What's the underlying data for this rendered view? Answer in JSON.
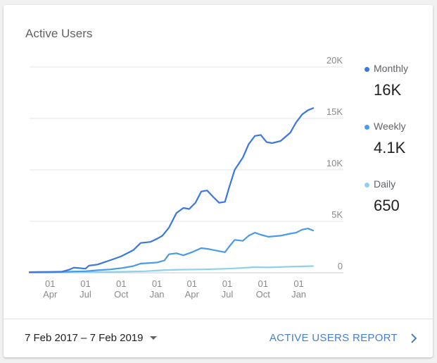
{
  "card": {
    "title": "Active Users"
  },
  "legend": [
    {
      "label": "Monthly",
      "value": "16K",
      "color": "#3a78e0"
    },
    {
      "label": "Weekly",
      "value": "4.1K",
      "color": "#4a9be6"
    },
    {
      "label": "Daily",
      "value": "650",
      "color": "#8fd0ea"
    }
  ],
  "footer": {
    "date_range": "7 Feb 2017 – 7 Feb 2019",
    "report_link": "ACTIVE USERS REPORT",
    "caret_icon": "caret-down-icon",
    "chevron_icon": "chevron-right-icon"
  },
  "chart_data": {
    "type": "line",
    "title": "Active Users",
    "xlabel": "",
    "ylabel": "",
    "x_ticks": [
      {
        "day": "01",
        "month": "Apr",
        "date": "2017-04-01"
      },
      {
        "day": "01",
        "month": "Jul",
        "date": "2017-07-01"
      },
      {
        "day": "01",
        "month": "Oct",
        "date": "2017-10-01"
      },
      {
        "day": "01",
        "month": "Jan",
        "date": "2018-01-01"
      },
      {
        "day": "01",
        "month": "Apr",
        "date": "2018-04-01"
      },
      {
        "day": "01",
        "month": "Jul",
        "date": "2018-07-01"
      },
      {
        "day": "01",
        "month": "Oct",
        "date": "2018-10-01"
      },
      {
        "day": "01",
        "month": "Jan",
        "date": "2019-01-01"
      }
    ],
    "y_ticks": [
      "20K",
      "15K",
      "10K",
      "5K",
      "0"
    ],
    "ylim": [
      0,
      20000
    ],
    "xlim": [
      "2017-02-07",
      "2019-02-07"
    ],
    "grid": true,
    "legend_position": "right",
    "series": [
      {
        "name": "Monthly",
        "color": "#3a78e0",
        "points": [
          [
            "2017-02-07",
            60
          ],
          [
            "2017-03-01",
            80
          ],
          [
            "2017-04-01",
            90
          ],
          [
            "2017-05-01",
            100
          ],
          [
            "2017-05-20",
            300
          ],
          [
            "2017-06-01",
            500
          ],
          [
            "2017-06-15",
            450
          ],
          [
            "2017-07-01",
            400
          ],
          [
            "2017-07-10",
            700
          ],
          [
            "2017-08-01",
            800
          ],
          [
            "2017-09-01",
            1200
          ],
          [
            "2017-10-01",
            1600
          ],
          [
            "2017-11-01",
            2200
          ],
          [
            "2017-11-20",
            2900
          ],
          [
            "2017-12-15",
            3000
          ],
          [
            "2018-01-01",
            3300
          ],
          [
            "2018-01-15",
            3600
          ],
          [
            "2018-02-01",
            4400
          ],
          [
            "2018-02-20",
            5800
          ],
          [
            "2018-03-10",
            6300
          ],
          [
            "2018-03-25",
            6200
          ],
          [
            "2018-04-10",
            6800
          ],
          [
            "2018-04-25",
            7900
          ],
          [
            "2018-05-10",
            8000
          ],
          [
            "2018-05-25",
            7400
          ],
          [
            "2018-06-10",
            6800
          ],
          [
            "2018-06-25",
            6900
          ],
          [
            "2018-07-05",
            8200
          ],
          [
            "2018-07-20",
            10000
          ],
          [
            "2018-08-10",
            11200
          ],
          [
            "2018-08-25",
            12500
          ],
          [
            "2018-09-10",
            13300
          ],
          [
            "2018-09-25",
            13400
          ],
          [
            "2018-10-10",
            12700
          ],
          [
            "2018-10-25",
            12600
          ],
          [
            "2018-11-15",
            12800
          ],
          [
            "2018-12-10",
            13600
          ],
          [
            "2018-12-25",
            14600
          ],
          [
            "2019-01-10",
            15400
          ],
          [
            "2019-01-25",
            15800
          ],
          [
            "2019-02-07",
            16000
          ]
        ]
      },
      {
        "name": "Weekly",
        "color": "#4a9be6",
        "points": [
          [
            "2017-02-07",
            40
          ],
          [
            "2017-04-01",
            50
          ],
          [
            "2017-06-01",
            120
          ],
          [
            "2017-07-01",
            150
          ],
          [
            "2017-08-01",
            250
          ],
          [
            "2017-09-01",
            320
          ],
          [
            "2017-10-01",
            450
          ],
          [
            "2017-11-01",
            650
          ],
          [
            "2017-11-20",
            900
          ],
          [
            "2017-12-15",
            950
          ],
          [
            "2018-01-01",
            1000
          ],
          [
            "2018-01-20",
            1200
          ],
          [
            "2018-02-01",
            1800
          ],
          [
            "2018-02-20",
            1900
          ],
          [
            "2018-03-10",
            1700
          ],
          [
            "2018-04-01",
            2000
          ],
          [
            "2018-04-25",
            2400
          ],
          [
            "2018-05-15",
            2300
          ],
          [
            "2018-06-10",
            2100
          ],
          [
            "2018-06-25",
            2000
          ],
          [
            "2018-07-05",
            2500
          ],
          [
            "2018-07-20",
            3200
          ],
          [
            "2018-08-10",
            3100
          ],
          [
            "2018-08-25",
            3600
          ],
          [
            "2018-09-10",
            3900
          ],
          [
            "2018-09-25",
            3700
          ],
          [
            "2018-10-15",
            3500
          ],
          [
            "2018-11-15",
            3600
          ],
          [
            "2018-12-10",
            3800
          ],
          [
            "2018-12-25",
            3900
          ],
          [
            "2019-01-10",
            4200
          ],
          [
            "2019-01-25",
            4300
          ],
          [
            "2019-02-07",
            4100
          ]
        ]
      },
      {
        "name": "Daily",
        "color": "#8fd0ea",
        "points": [
          [
            "2017-02-07",
            20
          ],
          [
            "2017-06-01",
            40
          ],
          [
            "2017-09-01",
            80
          ],
          [
            "2017-12-01",
            150
          ],
          [
            "2018-01-15",
            250
          ],
          [
            "2018-03-01",
            300
          ],
          [
            "2018-05-01",
            330
          ],
          [
            "2018-07-01",
            400
          ],
          [
            "2018-08-01",
            450
          ],
          [
            "2018-09-10",
            550
          ],
          [
            "2018-10-15",
            520
          ],
          [
            "2018-12-01",
            580
          ],
          [
            "2019-01-10",
            620
          ],
          [
            "2019-02-07",
            650
          ]
        ]
      }
    ]
  }
}
